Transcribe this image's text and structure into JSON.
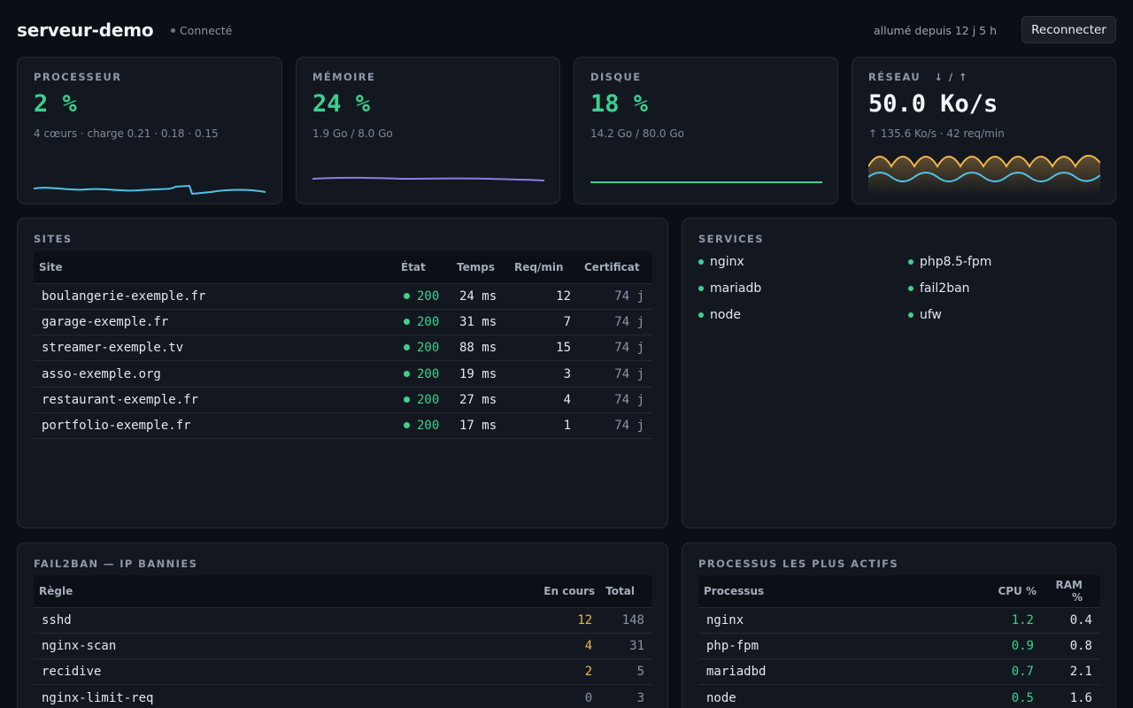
{
  "header": {
    "title": "serveur-demo",
    "status": "Connecté",
    "uptime": "allumé depuis 12 j 5 h",
    "reconnect_label": "Reconnecter"
  },
  "stats": {
    "cpu": {
      "label": "PROCESSEUR",
      "value": "2 %",
      "sub": "4 cœurs · charge 0.21 · 0.18 · 0.15",
      "percent": 2
    },
    "mem": {
      "label": "MÉMOIRE",
      "value": "24 %",
      "sub": "1.9 Go / 8.0 Go",
      "percent": 24
    },
    "disk": {
      "label": "DISQUE",
      "value": "18 %",
      "sub": "14.2 Go / 80.0 Go",
      "percent": 18
    },
    "net": {
      "label": "RÉSEAU",
      "arrows": "↓ / ↑",
      "value": "50.0 Ko/s",
      "sub": "↑ 135.6 Ko/s · 42 req/min"
    }
  },
  "colors": {
    "accent_green": "#3ecf8e",
    "cpu_line": "#4fc3e8",
    "mem_line": "#8b7fe0",
    "disk_line": "#3ecf8e",
    "net_down": "#f0b44c",
    "net_up": "#4fc3e8",
    "warn": "#f0b44c"
  },
  "sites": {
    "title": "SITES",
    "columns": [
      "Site",
      "État",
      "Temps",
      "Req/min",
      "Certificat"
    ],
    "rows": [
      {
        "site": "boulangerie-exemple.fr",
        "state": "200",
        "time": "24 ms",
        "req": "12",
        "cert": "74 j"
      },
      {
        "site": "garage-exemple.fr",
        "state": "200",
        "time": "31 ms",
        "req": "7",
        "cert": "74 j"
      },
      {
        "site": "streamer-exemple.tv",
        "state": "200",
        "time": "88 ms",
        "req": "15",
        "cert": "74 j"
      },
      {
        "site": "asso-exemple.org",
        "state": "200",
        "time": "19 ms",
        "req": "3",
        "cert": "74 j"
      },
      {
        "site": "restaurant-exemple.fr",
        "state": "200",
        "time": "27 ms",
        "req": "4",
        "cert": "74 j"
      },
      {
        "site": "portfolio-exemple.fr",
        "state": "200",
        "time": "17 ms",
        "req": "1",
        "cert": "74 j"
      }
    ]
  },
  "services": {
    "title": "SERVICES",
    "items": [
      "nginx",
      "php8.5-fpm",
      "mariadb",
      "fail2ban",
      "node",
      "ufw"
    ]
  },
  "fail2ban": {
    "title": "FAIL2BAN — IP BANNIES",
    "columns": [
      "Règle",
      "En cours",
      "Total"
    ],
    "rows": [
      {
        "rule": "sshd",
        "current": "12",
        "total": "148",
        "active": true
      },
      {
        "rule": "nginx-scan",
        "current": "4",
        "total": "31",
        "active": true
      },
      {
        "rule": "recidive",
        "current": "2",
        "total": "5",
        "active": true
      },
      {
        "rule": "nginx-limit-req",
        "current": "0",
        "total": "3",
        "active": false
      }
    ]
  },
  "processes": {
    "title": "PROCESSUS LES PLUS ACTIFS",
    "columns": [
      "Processus",
      "CPU %",
      "RAM %"
    ],
    "rows": [
      {
        "name": "nginx",
        "cpu": "1.2",
        "ram": "0.4"
      },
      {
        "name": "php-fpm",
        "cpu": "0.9",
        "ram": "0.8"
      },
      {
        "name": "mariadbd",
        "cpu": "0.7",
        "ram": "2.1"
      },
      {
        "name": "node",
        "cpu": "0.5",
        "ram": "1.6"
      }
    ]
  }
}
